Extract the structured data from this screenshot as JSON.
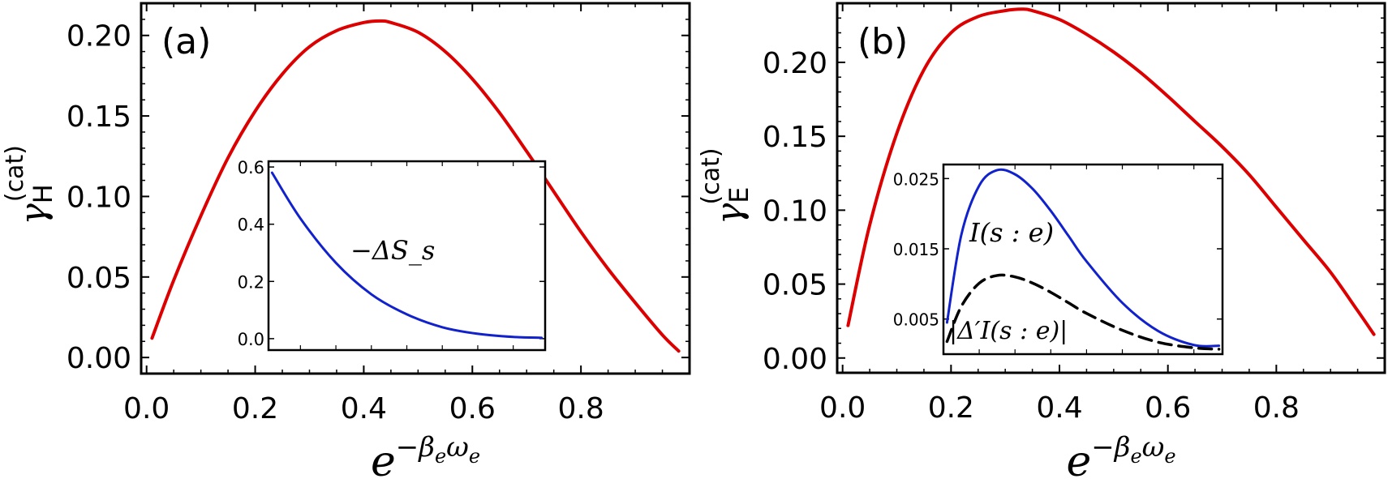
{
  "chart_data": [
    {
      "type": "line",
      "panel_label": "(a)",
      "xlabel": "e^{−β_e ω_e}",
      "ylabel": "γ_H^(cat)",
      "xlim": [
        -0.01,
        1.0
      ],
      "ylim": [
        -0.01,
        0.22
      ],
      "xticks": [
        "0.0",
        "0.2",
        "0.4",
        "0.6",
        "0.8"
      ],
      "yticks": [
        "0.00",
        "0.05",
        "0.10",
        "0.15",
        "0.20"
      ],
      "series": [
        {
          "color": "#dd0000",
          "x": [
            0.01,
            0.05,
            0.1,
            0.15,
            0.2,
            0.25,
            0.3,
            0.35,
            0.4,
            0.43,
            0.45,
            0.5,
            0.55,
            0.6,
            0.65,
            0.7,
            0.75,
            0.8,
            0.85,
            0.9,
            0.95,
            0.98
          ],
          "y": [
            0.012,
            0.048,
            0.088,
            0.124,
            0.153,
            0.176,
            0.193,
            0.203,
            0.208,
            0.209,
            0.208,
            0.202,
            0.19,
            0.173,
            0.152,
            0.128,
            0.103,
            0.078,
            0.055,
            0.034,
            0.014,
            0.004
          ]
        }
      ],
      "inset": {
        "type": "line",
        "xlim": [
          0.21,
          0.99
        ],
        "ylim": [
          -0.04,
          0.62
        ],
        "yticks": [
          "0.0",
          "0.2",
          "0.4",
          "0.6"
        ],
        "annotations": [
          "−ΔS_s"
        ],
        "series": [
          {
            "color": "#1122cc",
            "x": [
              0.22,
              0.3,
              0.4,
              0.5,
              0.6,
              0.7,
              0.8,
              0.9,
              0.98
            ],
            "y": [
              0.58,
              0.42,
              0.265,
              0.155,
              0.085,
              0.04,
              0.017,
              0.006,
              0.003
            ]
          }
        ]
      }
    },
    {
      "type": "line",
      "panel_label": "(b)",
      "xlabel": "e^{−β_e ω_e}",
      "ylabel": "γ_E^(cat)",
      "xlim": [
        -0.01,
        1.0
      ],
      "ylim": [
        -0.01,
        0.24
      ],
      "xticks": [
        "0.0",
        "0.2",
        "0.4",
        "0.6",
        "0.8"
      ],
      "yticks": [
        "0.00",
        "0.05",
        "0.10",
        "0.15",
        "0.20"
      ],
      "series": [
        {
          "color": "#dd0000",
          "x": [
            0.01,
            0.05,
            0.1,
            0.15,
            0.2,
            0.25,
            0.3,
            0.33,
            0.35,
            0.4,
            0.45,
            0.5,
            0.55,
            0.6,
            0.65,
            0.7,
            0.75,
            0.8,
            0.85,
            0.9,
            0.95,
            0.98
          ],
          "y": [
            0.022,
            0.09,
            0.152,
            0.195,
            0.22,
            0.231,
            0.235,
            0.236,
            0.235,
            0.229,
            0.219,
            0.207,
            0.193,
            0.177,
            0.16,
            0.143,
            0.124,
            0.102,
            0.08,
            0.058,
            0.032,
            0.016
          ]
        }
      ],
      "inset": {
        "type": "line",
        "xlim": [
          0.2,
          0.98
        ],
        "ylim": [
          0.0,
          0.027
        ],
        "yticks": [
          "0.005",
          "0.015",
          "0.025"
        ],
        "annotations": [
          "I(s : e)",
          "|Δ′I(s : e)|"
        ],
        "series": [
          {
            "name": "I(s : e)",
            "color": "#1122cc",
            "style": "solid",
            "x": [
              0.21,
              0.25,
              0.3,
              0.35,
              0.4,
              0.45,
              0.5,
              0.55,
              0.6,
              0.7,
              0.8,
              0.9,
              0.97
            ],
            "y": [
              0.0045,
              0.017,
              0.024,
              0.0262,
              0.0256,
              0.0235,
              0.0204,
              0.0168,
              0.0132,
              0.0073,
              0.0033,
              0.0013,
              0.0012
            ]
          },
          {
            "name": "|Δ′I(s : e)|",
            "color": "#000000",
            "style": "dashed",
            "x": [
              0.21,
              0.25,
              0.3,
              0.35,
              0.4,
              0.45,
              0.5,
              0.55,
              0.6,
              0.7,
              0.8,
              0.9,
              0.97
            ],
            "y": [
              0.0018,
              0.0068,
              0.0101,
              0.0112,
              0.011,
              0.0101,
              0.0088,
              0.0073,
              0.0058,
              0.0034,
              0.0017,
              0.0009,
              0.0007
            ]
          }
        ]
      }
    }
  ]
}
